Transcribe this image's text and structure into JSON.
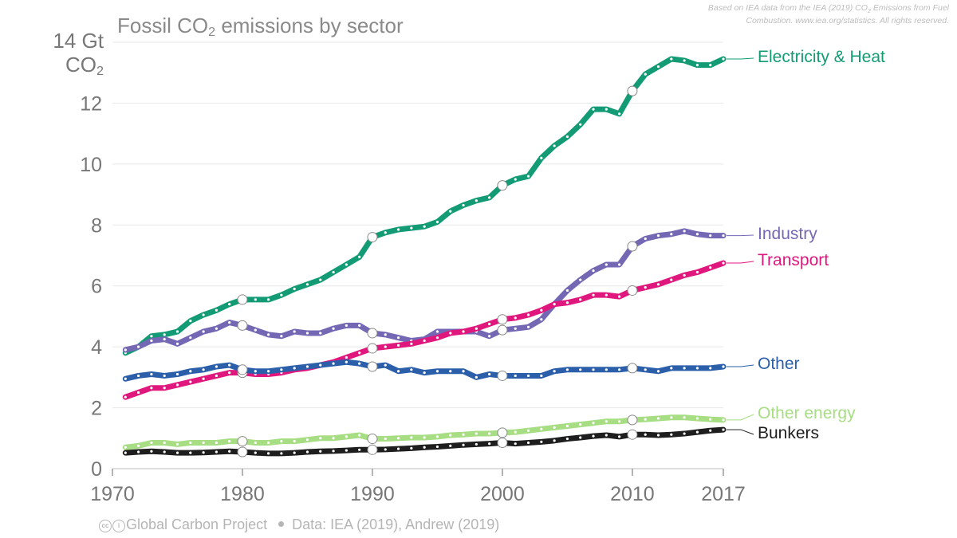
{
  "title": {
    "text": "Fossil CO",
    "sub": "2",
    "suffix": " emissions by sector"
  },
  "source_note": {
    "line1": "Based on IEA data from the IEA (2019) CO",
    "sub": "2",
    "line1b": " Emissions from Fuel",
    "line2": "Combustion. www.iea.org/statistics. All rights reserved."
  },
  "yaxis_label": {
    "unit": "Gt",
    "line2": "CO",
    "sub": "2"
  },
  "footer": {
    "project": "Global Carbon Project",
    "data": "Data: IEA (2019), Andrew (2019)"
  },
  "icons": {
    "license": "creative-commons-icon"
  },
  "chart_data": {
    "type": "line",
    "title": "Fossil CO2 emissions by sector",
    "ylabel": "Gt CO2",
    "xlim": [
      1970,
      2017
    ],
    "ylim": [
      0,
      14
    ],
    "x_ticks": [
      1970,
      1980,
      1990,
      2000,
      2010,
      2017
    ],
    "y_ticks": [
      0,
      2,
      4,
      6,
      8,
      10,
      12,
      14
    ],
    "grid": true,
    "legend": "right, end of lines",
    "x": [
      1971,
      1972,
      1973,
      1974,
      1975,
      1976,
      1977,
      1978,
      1979,
      1980,
      1981,
      1982,
      1983,
      1984,
      1985,
      1986,
      1987,
      1988,
      1989,
      1990,
      1991,
      1992,
      1993,
      1994,
      1995,
      1996,
      1997,
      1998,
      1999,
      2000,
      2001,
      2002,
      2003,
      2004,
      2005,
      2006,
      2007,
      2008,
      2009,
      2010,
      2011,
      2012,
      2013,
      2014,
      2015,
      2016,
      2017
    ],
    "series": [
      {
        "name": "Electricity & Heat",
        "color": "#129b74",
        "values": [
          3.8,
          4.0,
          4.35,
          4.4,
          4.5,
          4.85,
          5.05,
          5.2,
          5.4,
          5.55,
          5.55,
          5.55,
          5.7,
          5.9,
          6.05,
          6.2,
          6.45,
          6.7,
          6.95,
          7.6,
          7.75,
          7.85,
          7.9,
          7.95,
          8.1,
          8.45,
          8.65,
          8.8,
          8.9,
          9.3,
          9.5,
          9.6,
          10.2,
          10.6,
          10.9,
          11.3,
          11.8,
          11.8,
          11.65,
          12.4,
          12.95,
          13.2,
          13.45,
          13.4,
          13.25,
          13.25,
          13.45
        ]
      },
      {
        "name": "Industry",
        "color": "#7468b4",
        "values": [
          3.9,
          4.0,
          4.2,
          4.25,
          4.1,
          4.3,
          4.5,
          4.6,
          4.8,
          4.7,
          4.55,
          4.4,
          4.35,
          4.5,
          4.45,
          4.45,
          4.6,
          4.7,
          4.7,
          4.45,
          4.4,
          4.3,
          4.2,
          4.25,
          4.5,
          4.5,
          4.5,
          4.5,
          4.35,
          4.55,
          4.6,
          4.65,
          4.9,
          5.4,
          5.85,
          6.2,
          6.5,
          6.7,
          6.7,
          7.3,
          7.55,
          7.65,
          7.7,
          7.8,
          7.7,
          7.65,
          7.65
        ]
      },
      {
        "name": "Transport",
        "color": "#e0187d",
        "values": [
          2.35,
          2.5,
          2.65,
          2.65,
          2.75,
          2.85,
          2.95,
          3.05,
          3.15,
          3.15,
          3.1,
          3.1,
          3.15,
          3.25,
          3.3,
          3.4,
          3.5,
          3.65,
          3.8,
          3.95,
          4.0,
          4.05,
          4.1,
          4.2,
          4.3,
          4.45,
          4.5,
          4.6,
          4.75,
          4.9,
          4.95,
          5.05,
          5.2,
          5.4,
          5.45,
          5.55,
          5.7,
          5.7,
          5.65,
          5.85,
          5.95,
          6.05,
          6.2,
          6.35,
          6.45,
          6.6,
          6.75
        ]
      },
      {
        "name": "Other",
        "color": "#2b5faa",
        "values": [
          2.95,
          3.05,
          3.1,
          3.05,
          3.1,
          3.2,
          3.25,
          3.35,
          3.4,
          3.25,
          3.2,
          3.2,
          3.25,
          3.3,
          3.35,
          3.4,
          3.45,
          3.5,
          3.45,
          3.35,
          3.4,
          3.2,
          3.25,
          3.15,
          3.2,
          3.2,
          3.2,
          3.0,
          3.1,
          3.05,
          3.05,
          3.05,
          3.05,
          3.2,
          3.25,
          3.25,
          3.25,
          3.25,
          3.25,
          3.3,
          3.25,
          3.2,
          3.3,
          3.3,
          3.3,
          3.3,
          3.35
        ]
      },
      {
        "name": "Other energy",
        "color": "#a7dd83",
        "values": [
          0.7,
          0.75,
          0.85,
          0.85,
          0.8,
          0.85,
          0.85,
          0.85,
          0.9,
          0.9,
          0.85,
          0.85,
          0.9,
          0.9,
          0.95,
          1.0,
          1.0,
          1.05,
          1.1,
          0.98,
          0.98,
          1.0,
          1.02,
          1.02,
          1.05,
          1.1,
          1.12,
          1.15,
          1.15,
          1.18,
          1.2,
          1.25,
          1.3,
          1.35,
          1.4,
          1.45,
          1.5,
          1.55,
          1.55,
          1.6,
          1.62,
          1.65,
          1.68,
          1.68,
          1.65,
          1.62,
          1.6
        ]
      },
      {
        "name": "Bunkers",
        "color": "#1e1e1e",
        "values": [
          0.52,
          0.55,
          0.57,
          0.55,
          0.52,
          0.52,
          0.53,
          0.55,
          0.57,
          0.55,
          0.52,
          0.5,
          0.5,
          0.52,
          0.55,
          0.57,
          0.58,
          0.6,
          0.62,
          0.62,
          0.63,
          0.65,
          0.67,
          0.7,
          0.72,
          0.75,
          0.78,
          0.8,
          0.82,
          0.85,
          0.82,
          0.85,
          0.88,
          0.92,
          0.98,
          1.02,
          1.07,
          1.1,
          1.05,
          1.12,
          1.12,
          1.1,
          1.12,
          1.15,
          1.2,
          1.25,
          1.28
        ]
      }
    ]
  }
}
